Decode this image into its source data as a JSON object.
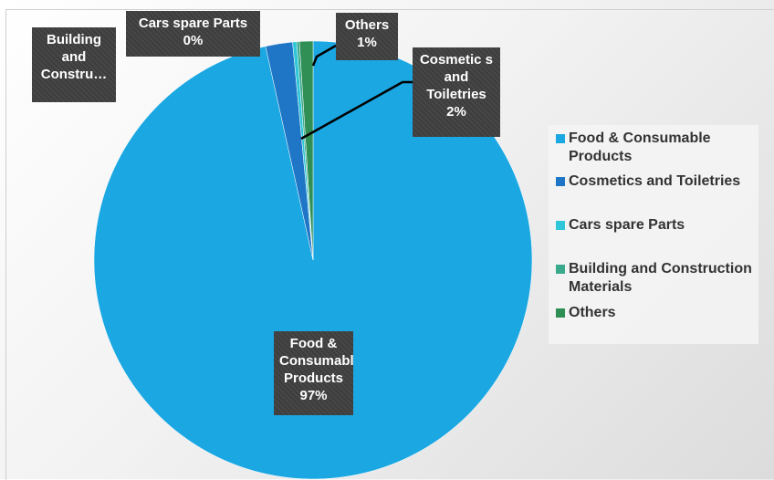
{
  "chart_data": {
    "type": "pie",
    "categories": [
      "Food  & Consumable Products",
      "Cosmetics and Toiletries",
      "Cars spare  Parts",
      "Building and Construction Materials",
      "Others"
    ],
    "values": [
      97,
      2,
      0.3,
      0.2,
      1
    ],
    "value_labels": [
      "97%",
      "2%",
      "0%",
      null,
      "1%"
    ],
    "label_names": [
      "Food  & Consumable Products",
      "Cosmetic s and Toiletries",
      "Cars spare  Parts",
      "Building and Constru…",
      "Others"
    ],
    "colors": [
      "#1aa7e2",
      "#1f76c6",
      "#2ec6d8",
      "#3aa98b",
      "#2f8f55"
    ],
    "legend": "right"
  }
}
